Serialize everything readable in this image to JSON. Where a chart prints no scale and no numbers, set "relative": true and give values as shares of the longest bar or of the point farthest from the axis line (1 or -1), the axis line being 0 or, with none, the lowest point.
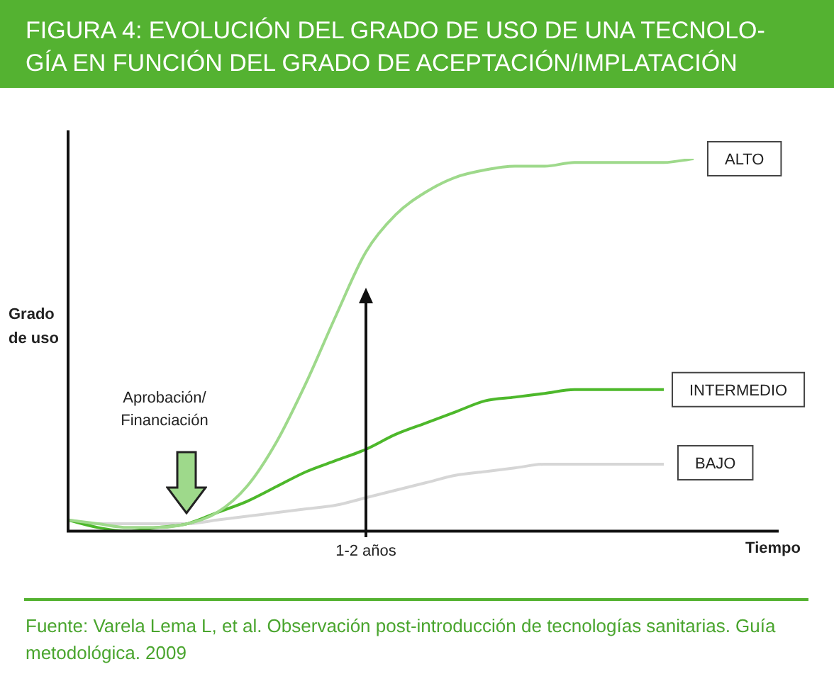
{
  "chart_data": {
    "type": "line",
    "relative": true,
    "title": "FIGURA 4: EVOLUCIÓN DEL GRADO DE USO DE UNA TECNOLO-\nGÍA EN FUNCIÓN DEL GRADO DE ACEPTACIÓN/IMPLATACIÓN",
    "xlabel": "Tiempo",
    "ylabel": "Grado\nde uso",
    "categories": [
      null,
      null,
      null,
      null,
      null,
      null,
      null,
      null,
      null,
      null,
      null,
      null,
      null,
      null,
      null,
      null,
      null,
      null,
      null,
      null,
      null,
      null
    ],
    "series": [
      {
        "name": "ALTO",
        "color": "#9ed98b",
        "values": [
          0.03,
          0.02,
          0.01,
          0.01,
          0.02,
          0.05,
          0.12,
          0.24,
          0.4,
          0.58,
          0.75,
          0.85,
          0.91,
          0.95,
          0.97,
          0.98,
          0.98,
          0.99,
          0.99,
          0.99,
          0.99,
          1
        ]
      },
      {
        "name": "INTERMEDIO",
        "color": "#4db82b",
        "values": [
          0.03,
          0.01,
          0,
          0.01,
          0.02,
          0.05,
          0.08,
          0.12,
          0.16,
          0.19,
          0.22,
          0.26,
          0.29,
          0.32,
          0.35,
          0.36,
          0.37,
          0.38,
          0.38,
          0.38,
          0.38,
          null
        ]
      },
      {
        "name": "BAJO",
        "color": "#d6d6d6",
        "values": [
          0.03,
          0.02,
          0.02,
          0.02,
          0.02,
          0.03,
          0.04,
          0.05,
          0.06,
          0.07,
          0.09,
          0.11,
          0.13,
          0.15,
          0.16,
          0.17,
          0.18,
          0.18,
          0.18,
          0.18,
          0.18,
          null
        ]
      }
    ],
    "legend": false,
    "marker": "none",
    "line_style": "solid",
    "annotations": [
      "Aprobación/\nFinanciación",
      "Fuente: Varela Lema L, et al. Observación post-introducción de tecnologías sanitarias. Guía metodológica. 2009",
      "1-2 años"
    ]
  }
}
